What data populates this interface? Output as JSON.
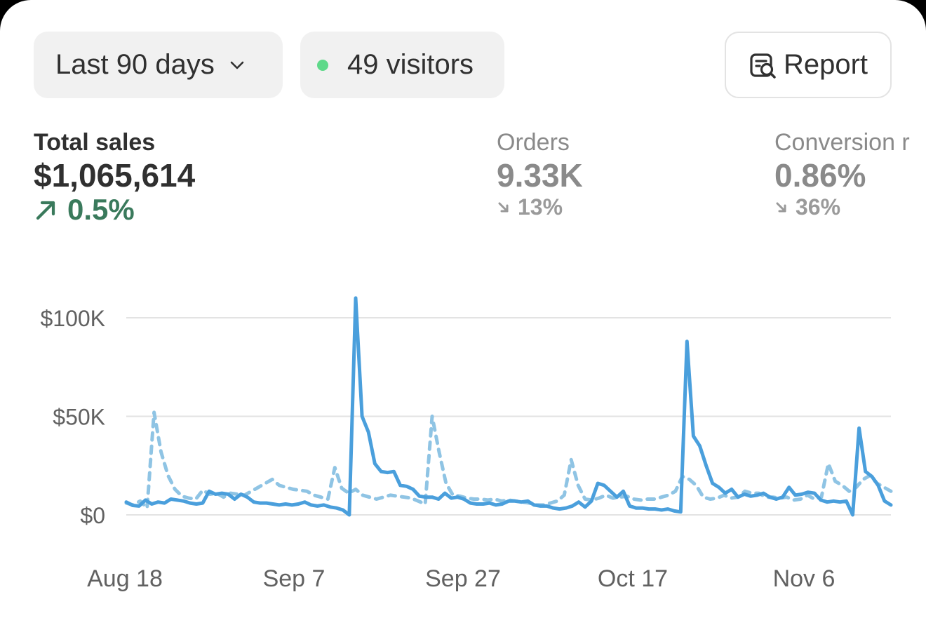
{
  "filters": {
    "date_range": "Last 90 days",
    "visitors_label": "49 visitors",
    "live_dot_color": "#5fd98a"
  },
  "report_button": {
    "label": "Report",
    "icon": "report-search-icon"
  },
  "metrics": [
    {
      "label": "Total sales",
      "value": "$1,065,614",
      "delta": "0.5%",
      "direction": "up",
      "active": true,
      "color": "#3a7a5c"
    },
    {
      "label": "Orders",
      "value": "9.33K",
      "delta": "13%",
      "direction": "down",
      "active": false
    },
    {
      "label": "Conversion r",
      "value": "0.86%",
      "delta": "36%",
      "direction": "down",
      "active": false
    }
  ],
  "chart_data": {
    "type": "line",
    "x_start": "Aug 18",
    "x_end": "Nov 12",
    "x_tick_labels": [
      "Aug 18",
      "Sep 7",
      "Sep 27",
      "Oct 17",
      "Nov 6"
    ],
    "y_tick_labels": [
      "$100K",
      "$50K",
      "$0"
    ],
    "y_ticks": [
      100000,
      50000,
      0
    ],
    "ylim": [
      0,
      100000
    ],
    "grid": true,
    "series": [
      {
        "style": "solid",
        "color": "#4a9fdc",
        "values": [
          6500,
          4800,
          4500,
          7500,
          5500,
          6500,
          6000,
          8000,
          7500,
          7000,
          6000,
          5500,
          6000,
          12000,
          10500,
          11000,
          10500,
          8000,
          10500,
          9000,
          6500,
          6000,
          6000,
          5500,
          5000,
          5500,
          5000,
          5500,
          6500,
          5000,
          4500,
          5000,
          4000,
          3500,
          2500,
          0,
          110000,
          50000,
          42000,
          26000,
          22000,
          21500,
          22000,
          15000,
          14500,
          13000,
          9500,
          9000,
          9000,
          8000,
          11000,
          8500,
          9000,
          8000,
          6000,
          5500,
          5500,
          6000,
          5000,
          5500,
          7000,
          7000,
          6500,
          7000,
          5000,
          4500,
          4500,
          3500,
          3000,
          3500,
          4500,
          6500,
          4000,
          7000,
          16000,
          15000,
          12000,
          9000,
          12000,
          4500,
          3500,
          3500,
          3000,
          3000,
          2500,
          3000,
          2000,
          1500,
          88000,
          40000,
          35000,
          25000,
          16000,
          14000,
          11000,
          13000,
          9000,
          10500,
          9500,
          10000,
          11000,
          9000,
          8000,
          9000,
          14000,
          10000,
          10500,
          11500,
          11000,
          7500,
          6500,
          7000,
          6500,
          7000,
          0,
          44000,
          22000,
          19500,
          15000,
          7000,
          5000
        ]
      },
      {
        "style": "dashed",
        "color": "#8fc4e4",
        "values": [
          6000,
          5000,
          7000,
          3500,
          52000,
          32000,
          20000,
          13000,
          9500,
          8500,
          8000,
          12500,
          10500,
          11000,
          9000,
          11000,
          10500,
          10000,
          12000,
          14000,
          16000,
          18000,
          15000,
          14000,
          13000,
          12500,
          12000,
          10000,
          9000,
          8000,
          24000,
          13500,
          11000,
          13000,
          10000,
          9000,
          8000,
          9000,
          10000,
          9500,
          9000,
          8500,
          7000,
          5500,
          50000,
          32000,
          16000,
          10000,
          9500,
          8500,
          8000,
          8000,
          7500,
          8000,
          7000,
          7500,
          7000,
          6500,
          6000,
          5000,
          5000,
          6000,
          7000,
          10000,
          28000,
          15000,
          8000,
          7500,
          8500,
          10000,
          8500,
          9000,
          9500,
          8000,
          7500,
          8000,
          8000,
          9000,
          10000,
          12000,
          19500,
          18000,
          15000,
          9000,
          8000,
          8500,
          10000,
          8500,
          9000,
          12000,
          11000,
          11000,
          9000,
          9000,
          8500,
          9000,
          7500,
          8000,
          10000,
          8000,
          9000,
          26000,
          17000,
          15000,
          12000,
          14000,
          18000,
          20000,
          16000,
          14000,
          12000
        ]
      }
    ]
  }
}
